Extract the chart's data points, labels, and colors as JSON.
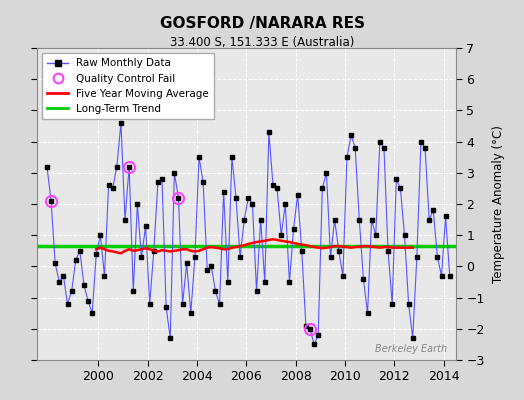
{
  "title": "GOSFORD /NARARA RES",
  "subtitle": "33.400 S, 151.333 E (Australia)",
  "ylabel": "Temperature Anomaly (°C)",
  "watermark": "Berkeley Earth",
  "ylim": [
    -3,
    7
  ],
  "yticks": [
    -3,
    -2,
    -1,
    0,
    1,
    2,
    3,
    4,
    5,
    6,
    7
  ],
  "xlim": [
    1997.5,
    2014.5
  ],
  "xticks": [
    2000,
    2002,
    2004,
    2006,
    2008,
    2010,
    2012,
    2014
  ],
  "background_color": "#d8d8d8",
  "plot_bg_color": "#e8e8e8",
  "grid_color": "#ffffff",
  "line_color": "#5555ff",
  "marker_color": "#000000",
  "moving_avg_color": "#ff0000",
  "trend_color": "#00cc00",
  "qc_fail_color": "#ff44ff",
  "trend_value": 0.65,
  "raw_data": [
    [
      1997.917,
      3.2
    ],
    [
      1998.083,
      2.1
    ],
    [
      1998.25,
      0.1
    ],
    [
      1998.417,
      -0.5
    ],
    [
      1998.583,
      -0.3
    ],
    [
      1998.75,
      -1.2
    ],
    [
      1998.917,
      -0.8
    ],
    [
      1999.083,
      0.2
    ],
    [
      1999.25,
      0.5
    ],
    [
      1999.417,
      -0.6
    ],
    [
      1999.583,
      -1.1
    ],
    [
      1999.75,
      -1.5
    ],
    [
      1999.917,
      0.4
    ],
    [
      2000.083,
      1.0
    ],
    [
      2000.25,
      -0.3
    ],
    [
      2000.417,
      2.6
    ],
    [
      2000.583,
      2.5
    ],
    [
      2000.75,
      3.2
    ],
    [
      2000.917,
      4.6
    ],
    [
      2001.083,
      1.5
    ],
    [
      2001.25,
      3.2
    ],
    [
      2001.417,
      -0.8
    ],
    [
      2001.583,
      2.0
    ],
    [
      2001.75,
      0.3
    ],
    [
      2001.917,
      1.3
    ],
    [
      2002.083,
      -1.2
    ],
    [
      2002.25,
      0.5
    ],
    [
      2002.417,
      2.7
    ],
    [
      2002.583,
      2.8
    ],
    [
      2002.75,
      -1.3
    ],
    [
      2002.917,
      -2.3
    ],
    [
      2003.083,
      3.0
    ],
    [
      2003.25,
      2.2
    ],
    [
      2003.417,
      -1.2
    ],
    [
      2003.583,
      0.1
    ],
    [
      2003.75,
      -1.5
    ],
    [
      2003.917,
      0.3
    ],
    [
      2004.083,
      3.5
    ],
    [
      2004.25,
      2.7
    ],
    [
      2004.417,
      -0.1
    ],
    [
      2004.583,
      0.0
    ],
    [
      2004.75,
      -0.8
    ],
    [
      2004.917,
      -1.2
    ],
    [
      2005.083,
      2.4
    ],
    [
      2005.25,
      -0.5
    ],
    [
      2005.417,
      3.5
    ],
    [
      2005.583,
      2.2
    ],
    [
      2005.75,
      0.3
    ],
    [
      2005.917,
      1.5
    ],
    [
      2006.083,
      2.2
    ],
    [
      2006.25,
      2.0
    ],
    [
      2006.417,
      -0.8
    ],
    [
      2006.583,
      1.5
    ],
    [
      2006.75,
      -0.5
    ],
    [
      2006.917,
      4.3
    ],
    [
      2007.083,
      2.6
    ],
    [
      2007.25,
      2.5
    ],
    [
      2007.417,
      1.0
    ],
    [
      2007.583,
      2.0
    ],
    [
      2007.75,
      -0.5
    ],
    [
      2007.917,
      1.2
    ],
    [
      2008.083,
      2.3
    ],
    [
      2008.25,
      0.5
    ],
    [
      2008.417,
      -1.9
    ],
    [
      2008.583,
      -2.0
    ],
    [
      2008.75,
      -2.5
    ],
    [
      2008.917,
      -2.2
    ],
    [
      2009.083,
      2.5
    ],
    [
      2009.25,
      3.0
    ],
    [
      2009.417,
      0.3
    ],
    [
      2009.583,
      1.5
    ],
    [
      2009.75,
      0.5
    ],
    [
      2009.917,
      -0.3
    ],
    [
      2010.083,
      3.5
    ],
    [
      2010.25,
      4.2
    ],
    [
      2010.417,
      3.8
    ],
    [
      2010.583,
      1.5
    ],
    [
      2010.75,
      -0.4
    ],
    [
      2010.917,
      -1.5
    ],
    [
      2011.083,
      1.5
    ],
    [
      2011.25,
      1.0
    ],
    [
      2011.417,
      4.0
    ],
    [
      2011.583,
      3.8
    ],
    [
      2011.75,
      0.5
    ],
    [
      2011.917,
      -1.2
    ],
    [
      2012.083,
      2.8
    ],
    [
      2012.25,
      2.5
    ],
    [
      2012.417,
      1.0
    ],
    [
      2012.583,
      -1.2
    ],
    [
      2012.75,
      -2.3
    ],
    [
      2012.917,
      0.3
    ],
    [
      2013.083,
      4.0
    ],
    [
      2013.25,
      3.8
    ],
    [
      2013.417,
      1.5
    ],
    [
      2013.583,
      1.8
    ],
    [
      2013.75,
      0.3
    ],
    [
      2013.917,
      -0.3
    ],
    [
      2014.083,
      1.6
    ],
    [
      2014.25,
      -0.3
    ]
  ],
  "qc_fail_points": [
    [
      1998.083,
      2.1
    ],
    [
      2001.25,
      3.2
    ],
    [
      2003.25,
      2.2
    ],
    [
      2008.583,
      -2.0
    ]
  ],
  "moving_avg": [
    [
      1999.917,
      0.55
    ],
    [
      2000.083,
      0.6
    ],
    [
      2000.25,
      0.55
    ],
    [
      2000.417,
      0.5
    ],
    [
      2000.583,
      0.48
    ],
    [
      2000.75,
      0.45
    ],
    [
      2000.917,
      0.42
    ],
    [
      2001.083,
      0.5
    ],
    [
      2001.25,
      0.55
    ],
    [
      2001.417,
      0.5
    ],
    [
      2001.583,
      0.52
    ],
    [
      2001.75,
      0.55
    ],
    [
      2001.917,
      0.58
    ],
    [
      2002.083,
      0.55
    ],
    [
      2002.25,
      0.5
    ],
    [
      2002.417,
      0.48
    ],
    [
      2002.583,
      0.52
    ],
    [
      2002.75,
      0.5
    ],
    [
      2002.917,
      0.48
    ],
    [
      2003.083,
      0.5
    ],
    [
      2003.25,
      0.52
    ],
    [
      2003.417,
      0.55
    ],
    [
      2003.583,
      0.55
    ],
    [
      2003.75,
      0.5
    ],
    [
      2003.917,
      0.48
    ],
    [
      2004.083,
      0.5
    ],
    [
      2004.25,
      0.55
    ],
    [
      2004.417,
      0.6
    ],
    [
      2004.583,
      0.62
    ],
    [
      2004.75,
      0.6
    ],
    [
      2004.917,
      0.58
    ],
    [
      2005.083,
      0.55
    ],
    [
      2005.25,
      0.55
    ],
    [
      2005.417,
      0.6
    ],
    [
      2005.583,
      0.62
    ],
    [
      2005.75,
      0.65
    ],
    [
      2005.917,
      0.68
    ],
    [
      2006.083,
      0.72
    ],
    [
      2006.25,
      0.75
    ],
    [
      2006.417,
      0.78
    ],
    [
      2006.583,
      0.8
    ],
    [
      2006.75,
      0.82
    ],
    [
      2006.917,
      0.85
    ],
    [
      2007.083,
      0.87
    ],
    [
      2007.25,
      0.85
    ],
    [
      2007.417,
      0.82
    ],
    [
      2007.583,
      0.8
    ],
    [
      2007.75,
      0.78
    ],
    [
      2007.917,
      0.75
    ],
    [
      2008.083,
      0.72
    ],
    [
      2008.25,
      0.7
    ],
    [
      2008.417,
      0.68
    ],
    [
      2008.583,
      0.65
    ],
    [
      2008.75,
      0.62
    ],
    [
      2008.917,
      0.6
    ],
    [
      2009.083,
      0.58
    ],
    [
      2009.25,
      0.6
    ],
    [
      2009.417,
      0.62
    ],
    [
      2009.583,
      0.65
    ],
    [
      2009.75,
      0.65
    ],
    [
      2009.917,
      0.63
    ],
    [
      2010.083,
      0.62
    ],
    [
      2010.25,
      0.6
    ],
    [
      2010.417,
      0.62
    ],
    [
      2010.583,
      0.63
    ],
    [
      2010.75,
      0.65
    ],
    [
      2010.917,
      0.65
    ],
    [
      2011.083,
      0.63
    ],
    [
      2011.25,
      0.62
    ],
    [
      2011.417,
      0.6
    ],
    [
      2011.583,
      0.62
    ],
    [
      2011.75,
      0.63
    ],
    [
      2011.917,
      0.6
    ],
    [
      2012.083,
      0.6
    ],
    [
      2012.25,
      0.6
    ],
    [
      2012.417,
      0.6
    ],
    [
      2012.583,
      0.6
    ],
    [
      2012.75,
      0.6
    ]
  ]
}
